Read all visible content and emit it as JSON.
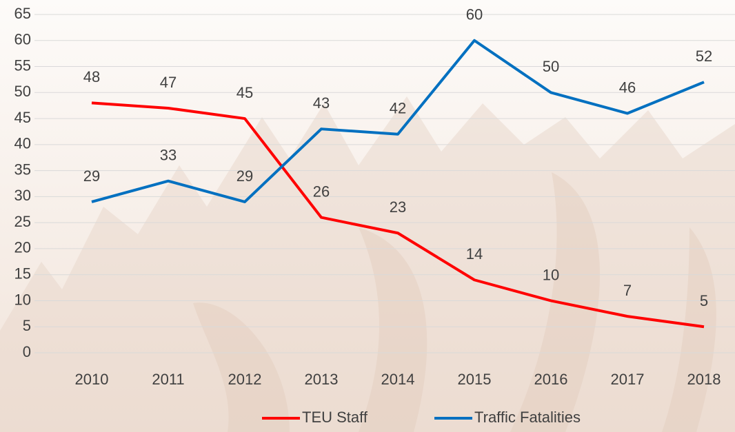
{
  "chart_data": {
    "type": "line",
    "categories": [
      "2010",
      "2011",
      "2012",
      "2013",
      "2014",
      "2015",
      "2016",
      "2017",
      "2018"
    ],
    "series": [
      {
        "name": "TEU Staff",
        "color": "#ff0000",
        "values": [
          48,
          47,
          45,
          26,
          23,
          14,
          10,
          7,
          5
        ]
      },
      {
        "name": "Traffic Fatalities",
        "color": "#0070c0",
        "values": [
          29,
          33,
          29,
          43,
          42,
          60,
          50,
          46,
          52
        ]
      }
    ],
    "ylim": [
      0,
      65
    ],
    "yticks": [
      0,
      5,
      10,
      15,
      20,
      25,
      30,
      35,
      40,
      45,
      50,
      55,
      60,
      65
    ],
    "grid": true,
    "legend": "bottom",
    "data_labels": true
  }
}
